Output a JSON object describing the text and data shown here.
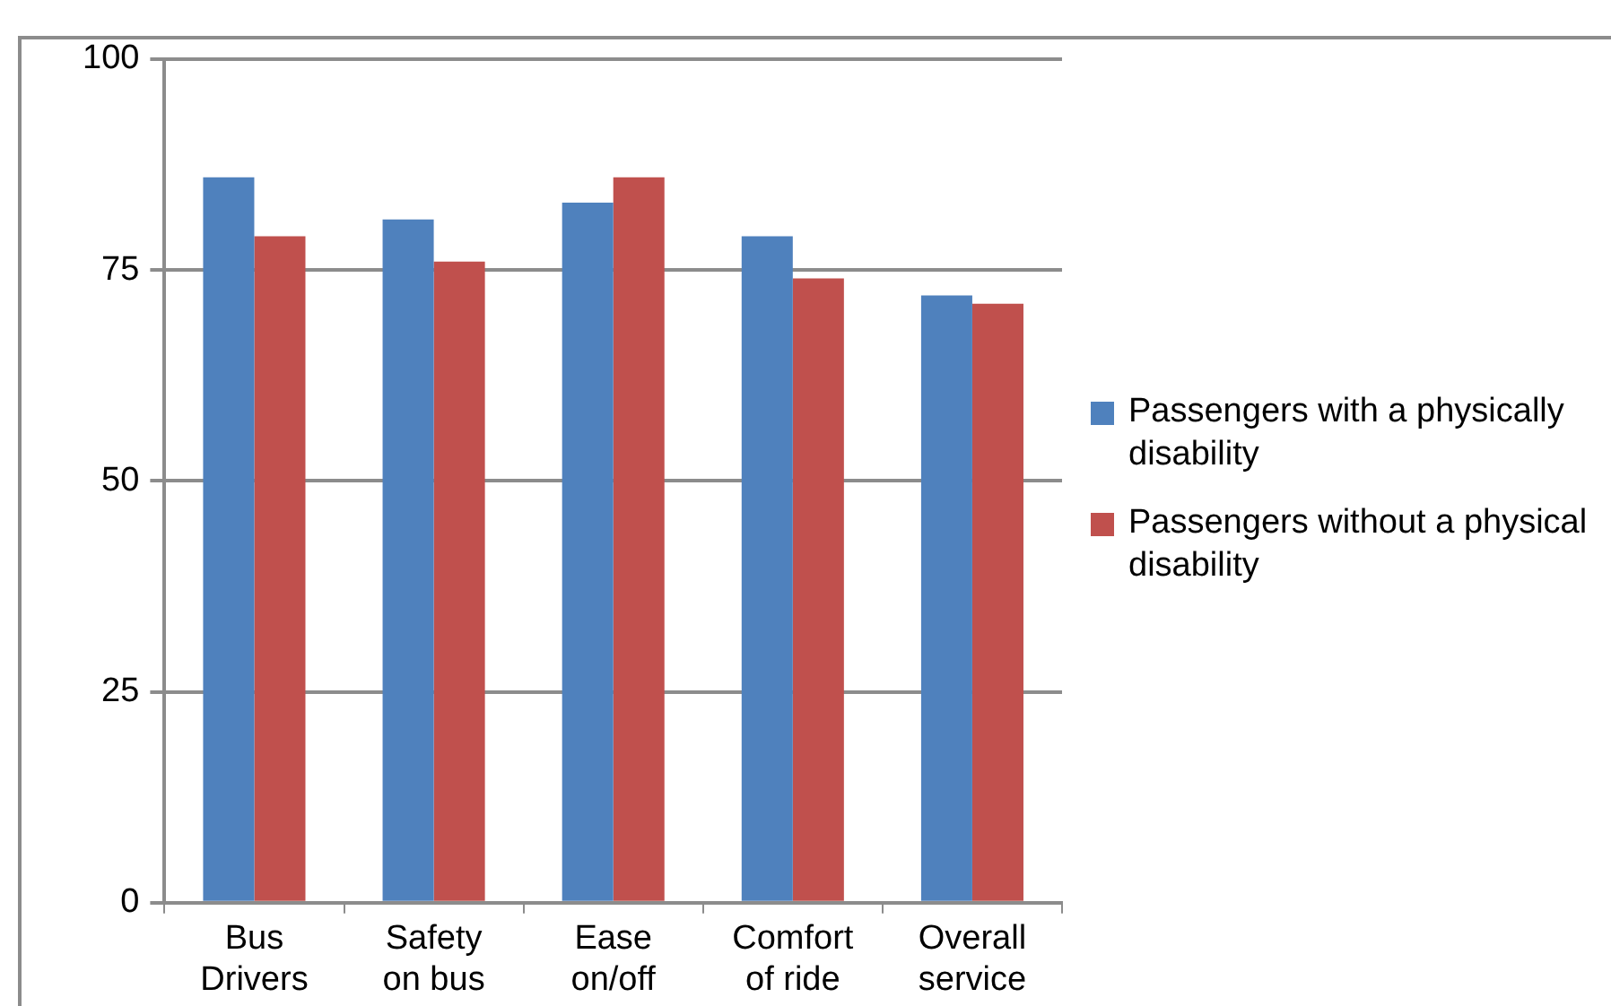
{
  "chart_data": {
    "type": "bar",
    "categories": [
      "Bus Drivers",
      "Safety on bus",
      "Ease on/off",
      "Comfort of ride",
      "Overall service"
    ],
    "series": [
      {
        "name": "Passengers with a physically disability",
        "color": "#4f81bd",
        "values": [
          86,
          81,
          83,
          79,
          72
        ]
      },
      {
        "name": "Passengers without a physical disability",
        "color": "#c0504d",
        "values": [
          79,
          76,
          86,
          74,
          71
        ]
      }
    ],
    "ylim": [
      0,
      100
    ],
    "yticks": [
      0,
      25,
      50,
      75,
      100
    ],
    "grid": "y",
    "legend": "right"
  }
}
